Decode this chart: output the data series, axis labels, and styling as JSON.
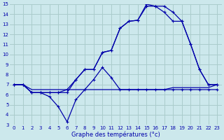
{
  "background_color": "#cce8ec",
  "grid_color": "#aacccc",
  "line_color": "#0000aa",
  "xlabel": "Graphe des températures (°c)",
  "xlim": [
    -0.5,
    23.5
  ],
  "ylim": [
    3,
    15
  ],
  "yticks": [
    3,
    4,
    5,
    6,
    7,
    8,
    9,
    10,
    11,
    12,
    13,
    14,
    15
  ],
  "xticks": [
    0,
    1,
    2,
    3,
    4,
    5,
    6,
    7,
    8,
    9,
    10,
    11,
    12,
    13,
    14,
    15,
    16,
    17,
    18,
    19,
    20,
    21,
    22,
    23
  ],
  "line1_x": [
    0,
    1,
    2,
    3,
    4,
    5,
    6,
    7,
    8,
    9,
    10,
    11,
    12,
    13,
    14,
    15,
    16,
    17,
    18,
    19,
    20,
    21,
    22,
    23
  ],
  "line1_y": [
    7,
    7,
    6.5,
    6.5,
    6.5,
    6.5,
    6.5,
    6.5,
    6.5,
    6.5,
    6.5,
    6.5,
    6.5,
    6.5,
    6.5,
    6.5,
    6.5,
    6.5,
    6.7,
    6.7,
    6.7,
    6.7,
    6.7,
    7
  ],
  "line2_x": [
    0,
    1,
    2,
    3,
    4,
    5,
    6,
    7,
    8,
    9,
    10,
    11,
    12,
    13,
    14,
    15,
    16,
    17,
    18,
    19,
    20,
    21,
    22,
    23
  ],
  "line2_y": [
    7,
    7,
    6.2,
    6.2,
    5.8,
    4.8,
    3.3,
    5.5,
    6.5,
    7.5,
    8.7,
    7.7,
    6.5,
    6.5,
    6.5,
    6.5,
    6.5,
    6.5,
    6.5,
    6.5,
    6.5,
    6.5,
    6.5,
    6.5
  ],
  "line3_x": [
    0,
    1,
    2,
    3,
    4,
    5,
    6,
    7,
    8,
    9,
    10,
    11,
    12,
    13,
    14,
    15,
    16,
    17,
    18,
    19,
    20,
    21,
    22,
    23
  ],
  "line3_y": [
    7,
    7,
    6.2,
    6.2,
    6.2,
    6.2,
    6.5,
    7.5,
    8.5,
    8.5,
    10.2,
    10.4,
    12.6,
    13.3,
    13.4,
    15,
    14.8,
    14.8,
    14.2,
    13.3,
    11,
    8.5,
    7,
    7
  ],
  "line4_x": [
    0,
    1,
    2,
    3,
    4,
    5,
    6,
    7,
    8,
    9,
    10,
    11,
    12,
    13,
    14,
    15,
    16,
    17,
    18,
    19,
    20,
    21,
    22,
    23
  ],
  "line4_y": [
    7,
    7,
    6.2,
    6.2,
    6.2,
    6.2,
    6.2,
    7.5,
    8.5,
    8.5,
    10.2,
    10.4,
    12.6,
    13.3,
    13.4,
    14.8,
    14.8,
    14.2,
    13.3,
    13.3,
    11,
    8.5,
    7,
    7
  ]
}
